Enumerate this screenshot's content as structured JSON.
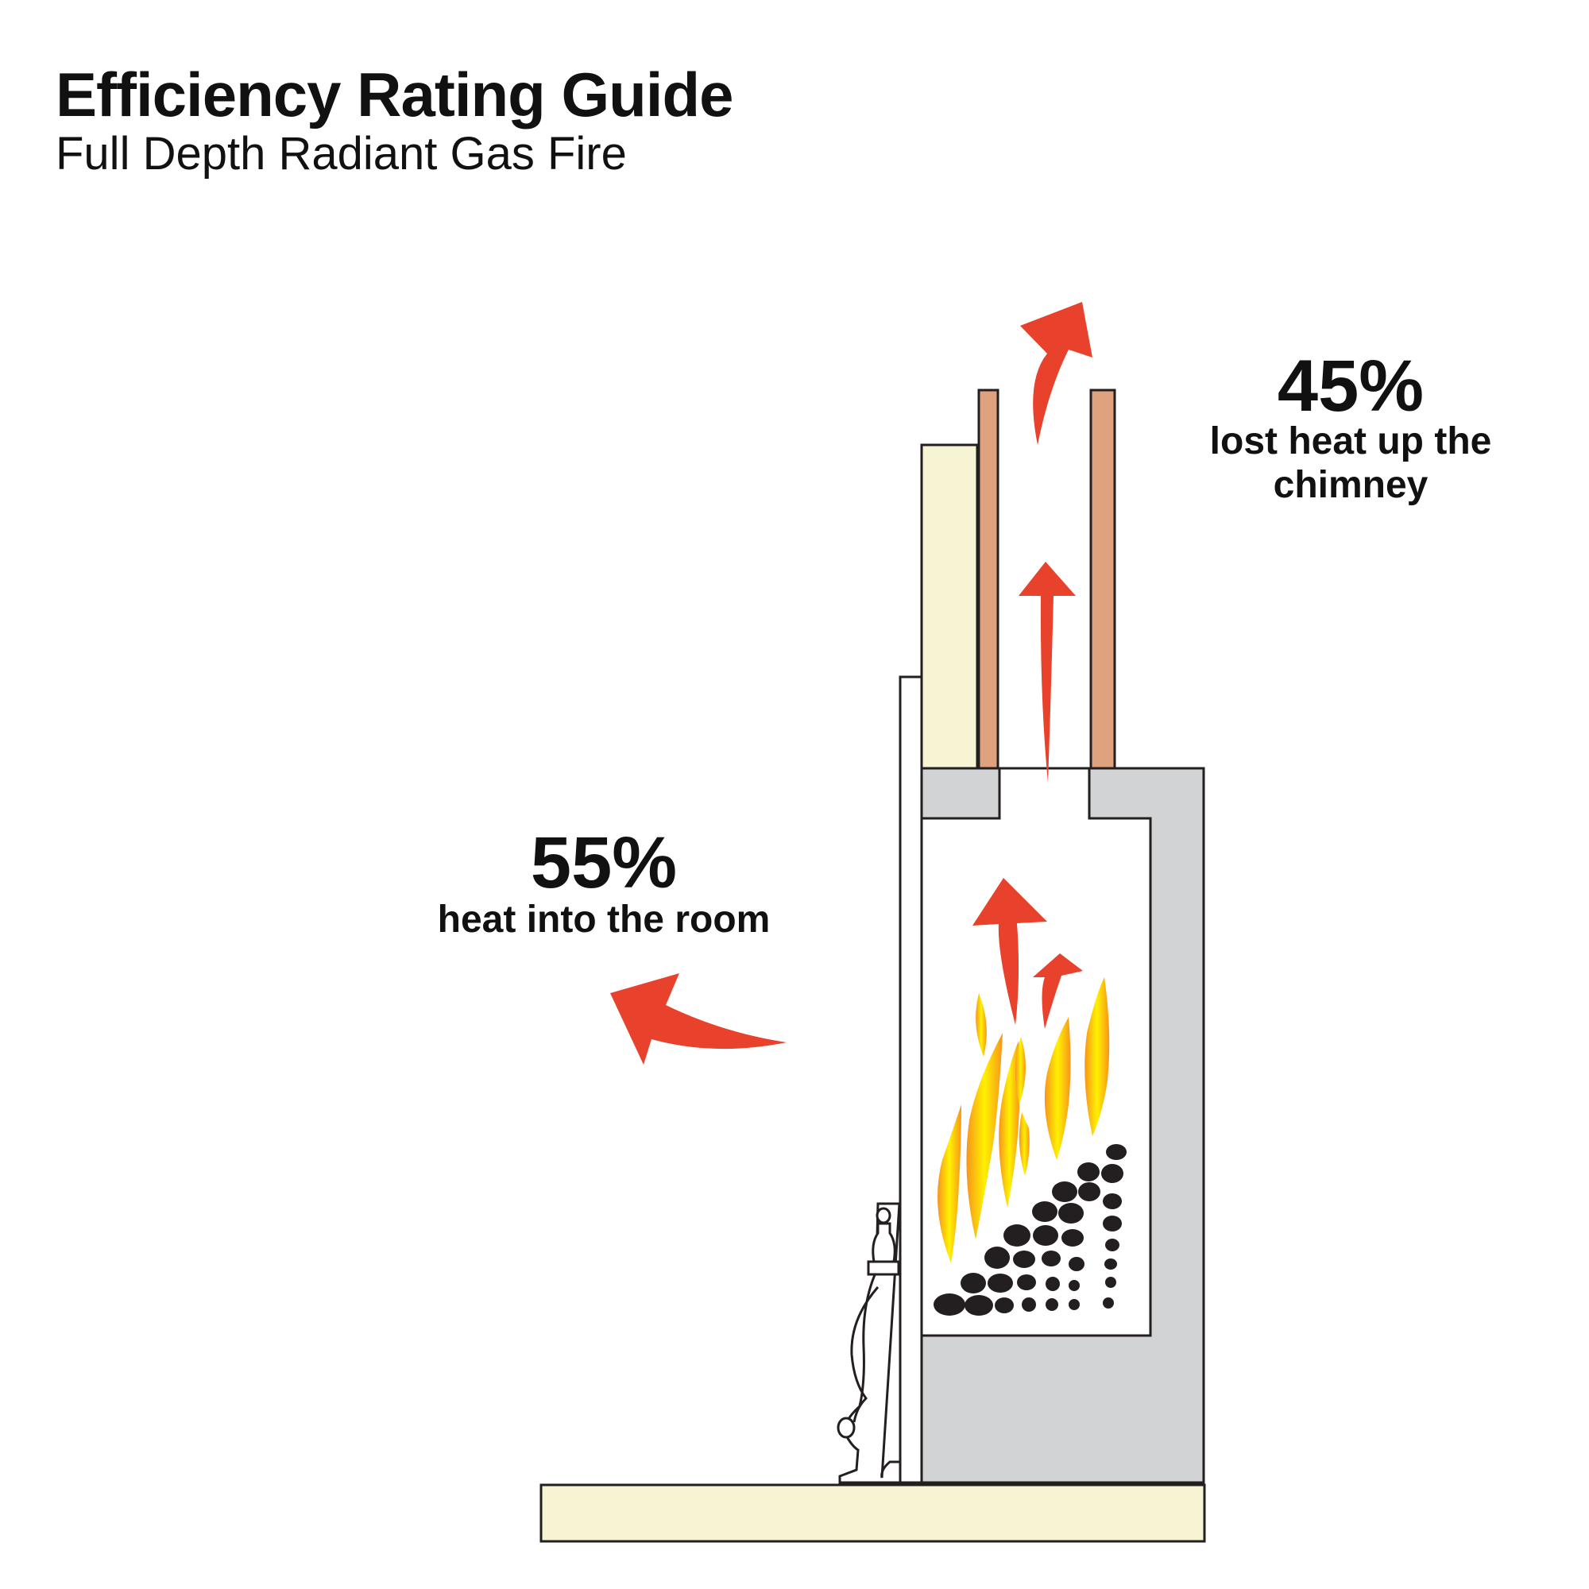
{
  "header": {
    "title": "Efficiency Rating Guide",
    "subtitle": "Full Depth Radiant Gas Fire"
  },
  "callouts": {
    "chimney": {
      "percent": "45%",
      "line1": "lost heat up the",
      "line2": "chimney"
    },
    "room": {
      "percent": "55%",
      "caption": "heat into the room"
    }
  },
  "colors": {
    "arrow": "#e8412c",
    "flue_liner": "#dea27f",
    "wall_cream": "#f6f4d2",
    "firebox_grey": "#d2d3d5",
    "outline": "#231f20",
    "coal": "#231f20",
    "flame_outer": "#f7941d",
    "flame_inner": "#fff200"
  }
}
